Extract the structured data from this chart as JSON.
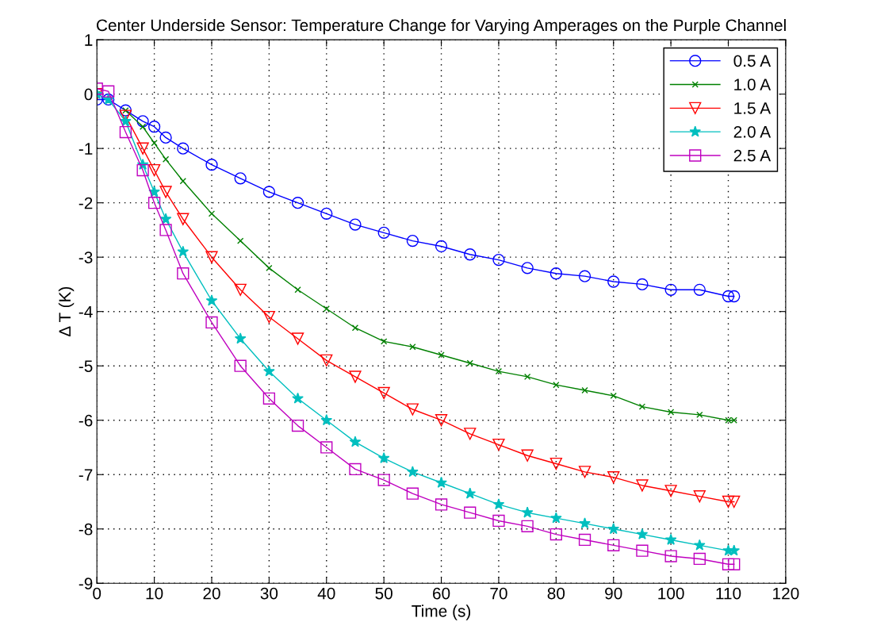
{
  "chart_data": {
    "type": "line",
    "title": "Center Underside Sensor: Temperature Change for Varying Amperages on the Purple Channel",
    "xlabel": "Time (s)",
    "ylabel": "Δ T (K)",
    "xlim": [
      0,
      120
    ],
    "xticks": [
      0,
      10,
      20,
      30,
      40,
      50,
      60,
      70,
      80,
      90,
      100,
      110,
      120
    ],
    "ylim": [
      -9,
      1
    ],
    "yticks": [
      -9,
      -8,
      -7,
      -6,
      -5,
      -4,
      -3,
      -2,
      -1,
      0,
      1
    ],
    "grid": true,
    "legend": "top right",
    "line_style": "solid",
    "x": [
      0,
      2,
      5,
      8,
      10,
      12,
      15,
      20,
      25,
      30,
      35,
      40,
      45,
      50,
      55,
      60,
      65,
      70,
      75,
      80,
      85,
      90,
      95,
      100,
      105,
      110,
      111
    ],
    "series": [
      {
        "name": "0.5 A",
        "color": "#0000ff",
        "marker": "circle",
        "values": [
          -0.1,
          -0.1,
          -0.3,
          -0.5,
          -0.6,
          -0.8,
          -1.0,
          -1.3,
          -1.55,
          -1.8,
          -2.0,
          -2.2,
          -2.4,
          -2.55,
          -2.7,
          -2.8,
          -2.95,
          -3.05,
          -3.2,
          -3.3,
          -3.35,
          -3.45,
          -3.5,
          -3.6,
          -3.6,
          -3.72,
          -3.72
        ]
      },
      {
        "name": "1.0 A",
        "color": "#008000",
        "marker": "cross",
        "values": [
          0,
          null,
          -0.3,
          -0.6,
          -0.9,
          -1.2,
          -1.6,
          -2.2,
          -2.7,
          -3.2,
          -3.6,
          -3.95,
          -4.3,
          -4.55,
          -4.65,
          -4.8,
          -4.95,
          -5.1,
          -5.2,
          -5.35,
          -5.45,
          -5.55,
          -5.75,
          -5.85,
          -5.9,
          -6.0,
          -6.0
        ]
      },
      {
        "name": "1.5 A",
        "color": "#ff0000",
        "marker": "triangle",
        "values": [
          0,
          null,
          -0.4,
          -1.0,
          -1.4,
          -1.8,
          -2.3,
          -3.0,
          -3.6,
          -4.1,
          -4.5,
          -4.9,
          -5.2,
          -5.5,
          -5.8,
          -6.0,
          -6.25,
          -6.45,
          -6.65,
          -6.8,
          -6.95,
          -7.05,
          -7.2,
          -7.3,
          -7.4,
          -7.5,
          -7.5
        ]
      },
      {
        "name": "2.0 A",
        "color": "#00bfbf",
        "marker": "star",
        "values": [
          0,
          -0.1,
          -0.5,
          -1.3,
          -1.8,
          -2.3,
          -2.9,
          -3.8,
          -4.5,
          -5.1,
          -5.6,
          -6.0,
          -6.4,
          -6.7,
          -6.95,
          -7.15,
          -7.35,
          -7.55,
          -7.7,
          -7.8,
          -7.9,
          -8.0,
          -8.1,
          -8.2,
          -8.3,
          -8.4,
          -8.4
        ]
      },
      {
        "name": "2.5 A",
        "color": "#bf00bf",
        "marker": "square",
        "values": [
          0.1,
          0.05,
          -0.7,
          -1.4,
          -2.0,
          -2.5,
          -3.3,
          -4.2,
          -5.0,
          -5.6,
          -6.1,
          -6.5,
          -6.9,
          -7.1,
          -7.35,
          -7.55,
          -7.7,
          -7.85,
          -7.95,
          -8.1,
          -8.2,
          -8.3,
          -8.4,
          -8.5,
          -8.55,
          -8.65,
          -8.65
        ]
      }
    ]
  }
}
